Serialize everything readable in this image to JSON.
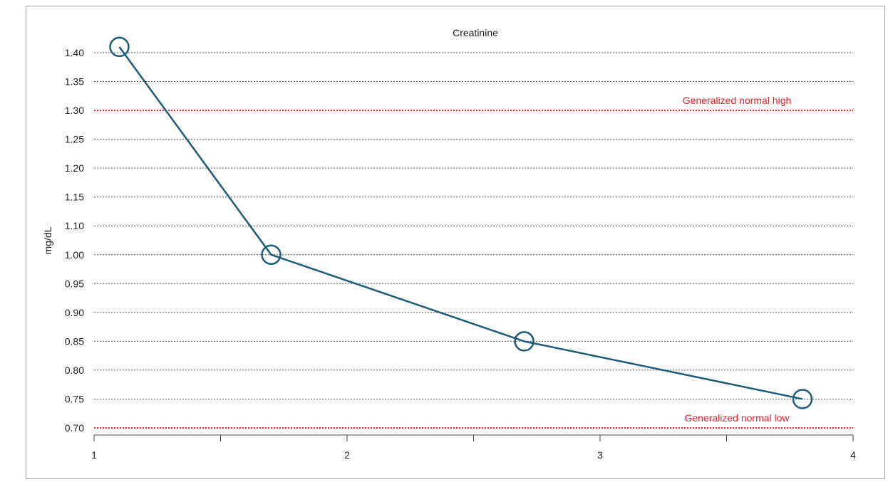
{
  "chart_data": {
    "type": "line",
    "title": "Creatinine",
    "ylabel": "mg/dL",
    "xlabel": "",
    "xlim": [
      1,
      4
    ],
    "ylim": [
      0.7,
      1.4
    ],
    "x_ticks": [
      1,
      1.5,
      2,
      2.5,
      3,
      3.5,
      4
    ],
    "x_tick_labels": [
      "1",
      "",
      "2",
      "",
      "3",
      "",
      "4"
    ],
    "y_ticks": [
      "0.70",
      "0.75",
      "0.80",
      "0.85",
      "0.90",
      "0.95",
      "1.00",
      "1.10",
      "1.15",
      "1.20",
      "1.25",
      "1.30",
      "1.35",
      "1.40"
    ],
    "grid": "horizontal dotted",
    "series": [
      {
        "color": "#1d5c78",
        "marker": "open-circle",
        "points": [
          {
            "x": 1.1,
            "y": 1.41
          },
          {
            "x": 1.7,
            "y": 1.0
          },
          {
            "x": 2.7,
            "y": 0.85
          },
          {
            "x": 3.8,
            "y": 0.75
          }
        ]
      }
    ],
    "reference_lines": [
      {
        "label": "Generalized normal high",
        "y": 1.3,
        "color": "#e8202a"
      },
      {
        "label": "Generalized normal low",
        "y": 0.7,
        "color": "#e8202a"
      }
    ]
  }
}
